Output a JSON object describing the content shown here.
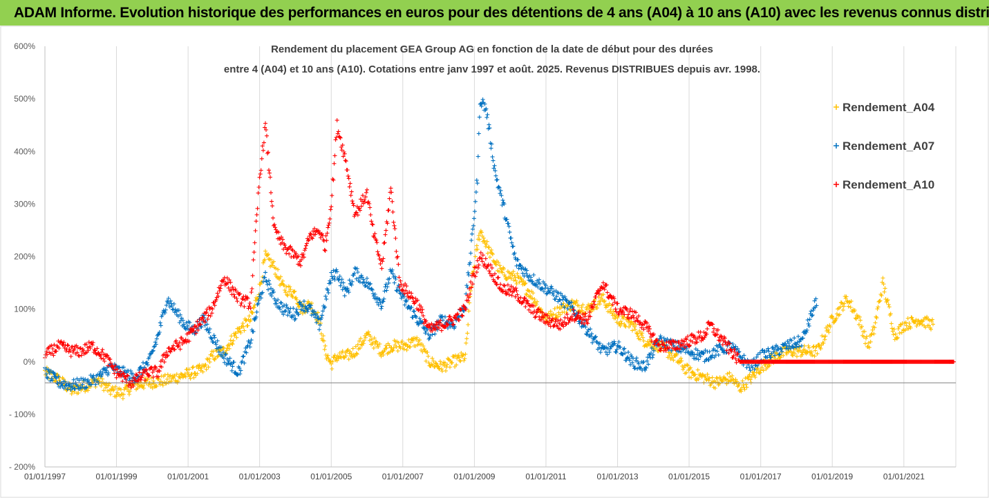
{
  "header": {
    "banner_title": "ADAM Informe. Evolution historique des performances en euros pour des détentions de 4 ans (A04) à 10 ans (A10) avec les revenus connus distribués",
    "banner_color": "#92d050"
  },
  "chart_data": {
    "type": "scatter",
    "title_line1": "Rendement du placement GEA Group AG en fonction de la date de début pour des durées",
    "title_line2": "entre 4 (A04) et 10 ans (A10). Cotations entre janv 1997 et août. 2025. Revenus DISTRIBUES depuis avr. 1998.",
    "xlabel": "",
    "ylabel": "",
    "x_type": "date",
    "xlim": [
      "1997-01-01",
      "2022-06-15"
    ],
    "ylim": [
      -200,
      600
    ],
    "y_ticks": [
      600,
      500,
      400,
      300,
      200,
      100,
      0,
      -100,
      -200
    ],
    "y_tick_labels": [
      "600%",
      "500%",
      "400%",
      "300%",
      "200%",
      "100%",
      "0%",
      "- 100%",
      "- 200%"
    ],
    "x_ticks": [
      "1997-01-01",
      "1999-01-01",
      "2001-01-01",
      "2003-01-01",
      "2005-01-01",
      "2007-01-01",
      "2009-01-01",
      "2011-01-01",
      "2013-01-01",
      "2015-01-01",
      "2017-01-01",
      "2019-01-01",
      "2021-01-01"
    ],
    "x_tick_labels": [
      "01/01/1997",
      "01/01/1999",
      "01/01/2001",
      "01/01/2003",
      "01/01/2005",
      "01/01/2007",
      "01/01/2009",
      "01/01/2011",
      "01/01/2013",
      "01/01/2015",
      "01/01/2017",
      "01/01/2019",
      "01/01/2021"
    ],
    "grid": "vertical",
    "legend_position": "top-right",
    "marker": "+",
    "series": [
      {
        "name": "Rendement_A04",
        "color": "#ffc000",
        "x": [
          "1997-01-01",
          "1997-06-01",
          "1997-10-01",
          "1998-03-01",
          "1998-07-01",
          "1998-11-01",
          "1999-03-01",
          "1999-07-01",
          "1999-12-01",
          "2000-06-01",
          "2000-12-01",
          "2001-03-01",
          "2001-06-01",
          "2001-09-01",
          "2002-01-01",
          "2002-06-01",
          "2002-10-01",
          "2003-01-01",
          "2003-03-01",
          "2003-06-01",
          "2003-09-01",
          "2004-01-01",
          "2004-03-01",
          "2004-06-01",
          "2004-09-01",
          "2004-11-01",
          "2005-01-01",
          "2005-03-01",
          "2005-06-01",
          "2005-09-01",
          "2006-01-01",
          "2006-06-01",
          "2006-09-01",
          "2007-01-01",
          "2007-06-01",
          "2007-10-01",
          "2008-02-01",
          "2008-06-01",
          "2008-10-01",
          "2008-12-01",
          "2009-03-01",
          "2009-06-01",
          "2009-10-01",
          "2010-03-01",
          "2010-08-01",
          "2011-01-01",
          "2011-06-01",
          "2011-10-01",
          "2012-03-01",
          "2012-08-01",
          "2013-01-01",
          "2013-06-01",
          "2013-10-01",
          "2014-03-01",
          "2014-08-01",
          "2015-01-01",
          "2015-06-01",
          "2015-10-01",
          "2016-03-01",
          "2016-06-01",
          "2016-10-01",
          "2017-01-01",
          "2017-06-01",
          "2017-10-01",
          "2018-03-01",
          "2018-08-01",
          "2019-01-01",
          "2019-06-01",
          "2019-10-01",
          "2020-01-01",
          "2020-03-01",
          "2020-06-01",
          "2020-10-01",
          "2021-01-01",
          "2021-06-01",
          "2021-11-01"
        ],
        "y": [
          -20,
          -35,
          -55,
          -45,
          -35,
          -55,
          -60,
          -45,
          -40,
          -35,
          -25,
          -20,
          -15,
          10,
          20,
          60,
          80,
          140,
          200,
          180,
          140,
          130,
          100,
          110,
          80,
          20,
          -5,
          10,
          10,
          20,
          50,
          20,
          30,
          30,
          40,
          0,
          -10,
          0,
          10,
          150,
          250,
          210,
          170,
          160,
          130,
          80,
          100,
          110,
          100,
          120,
          80,
          70,
          40,
          30,
          10,
          -20,
          -30,
          -40,
          -30,
          -50,
          -30,
          -10,
          10,
          20,
          20,
          20,
          80,
          120,
          80,
          30,
          60,
          150,
          50,
          70,
          80,
          70
        ]
      },
      {
        "name": "Rendement_A07",
        "color": "#0070c0",
        "x": [
          "1997-01-01",
          "1997-06-01",
          "1997-10-01",
          "1998-03-01",
          "1998-07-01",
          "1998-11-01",
          "1999-03-01",
          "1999-07-01",
          "1999-12-01",
          "2000-03-01",
          "2000-06-01",
          "2000-12-01",
          "2001-03-01",
          "2001-06-01",
          "2001-09-01",
          "2002-01-01",
          "2002-06-01",
          "2002-10-01",
          "2003-01-01",
          "2003-03-01",
          "2003-06-01",
          "2003-09-01",
          "2004-01-01",
          "2004-03-01",
          "2004-06-01",
          "2004-09-01",
          "2005-01-01",
          "2005-03-01",
          "2005-06-01",
          "2005-09-01",
          "2006-01-01",
          "2006-06-01",
          "2006-09-01",
          "2007-01-01",
          "2007-06-01",
          "2007-10-01",
          "2008-02-01",
          "2008-06-01",
          "2008-10-01",
          "2008-12-01",
          "2009-02-01",
          "2009-03-01",
          "2009-05-01",
          "2009-08-01",
          "2009-11-01",
          "2010-03-01",
          "2010-08-01",
          "2011-01-01",
          "2011-06-01",
          "2011-10-01",
          "2012-03-01",
          "2012-08-01",
          "2013-01-01",
          "2013-06-01",
          "2013-10-01",
          "2014-03-01",
          "2014-08-01",
          "2015-01-01",
          "2015-06-01",
          "2015-10-01",
          "2016-03-01",
          "2016-06-01",
          "2016-10-01",
          "2017-01-01",
          "2017-06-01",
          "2017-10-01",
          "2018-03-01",
          "2018-08-01"
        ],
        "y": [
          -20,
          -40,
          -45,
          -40,
          -30,
          -10,
          -20,
          -30,
          0,
          50,
          120,
          70,
          60,
          80,
          50,
          10,
          -20,
          40,
          120,
          160,
          120,
          100,
          90,
          110,
          100,
          70,
          160,
          170,
          130,
          170,
          150,
          110,
          170,
          120,
          80,
          50,
          80,
          70,
          110,
          220,
          350,
          500,
          480,
          360,
          290,
          190,
          160,
          140,
          120,
          100,
          60,
          20,
          30,
          0,
          -10,
          40,
          30,
          20,
          10,
          20,
          30,
          10,
          -10,
          10,
          20,
          30,
          40,
          120
        ]
      },
      {
        "name": "Rendement_A10",
        "color": "#ff0000",
        "x": [
          "1997-01-01",
          "1997-03-01",
          "1997-06-01",
          "1997-10-01",
          "1998-01-01",
          "1998-05-01",
          "1998-09-01",
          "1999-01-01",
          "1999-06-01",
          "1999-12-01",
          "2000-03-01",
          "2000-06-01",
          "2000-09-01",
          "2000-12-01",
          "2001-03-01",
          "2001-06-01",
          "2001-09-01",
          "2002-01-01",
          "2002-06-01",
          "2002-10-01",
          "2003-01-01",
          "2003-03-01",
          "2003-06-01",
          "2003-09-01",
          "2004-01-01",
          "2004-03-01",
          "2004-06-01",
          "2004-09-01",
          "2004-11-01",
          "2005-01-01",
          "2005-03-01",
          "2005-06-01",
          "2005-09-01",
          "2006-01-01",
          "2006-03-01",
          "2006-06-01",
          "2006-09-01",
          "2006-12-01",
          "2007-03-01",
          "2007-06-01",
          "2007-10-01",
          "2008-02-01",
          "2008-06-01",
          "2008-10-01",
          "2008-12-01",
          "2009-03-01",
          "2009-06-01",
          "2009-10-01",
          "2010-03-01",
          "2010-08-01",
          "2011-01-01",
          "2011-06-01",
          "2011-10-01",
          "2012-03-01",
          "2012-08-01",
          "2013-01-01",
          "2013-06-01",
          "2013-10-01",
          "2014-03-01",
          "2014-08-01",
          "2015-01-01",
          "2015-06-01",
          "2015-08-01",
          "2016-06-01",
          "2017-06-01",
          "2018-06-01",
          "2019-06-01",
          "2020-06-01",
          "2021-06-01",
          "2022-06-01"
        ],
        "y": [
          10,
          20,
          30,
          20,
          20,
          30,
          10,
          -20,
          -40,
          -20,
          -20,
          20,
          30,
          40,
          60,
          80,
          100,
          160,
          120,
          110,
          350,
          450,
          250,
          220,
          200,
          190,
          240,
          250,
          220,
          300,
          450,
          380,
          280,
          320,
          250,
          180,
          330,
          150,
          130,
          110,
          60,
          70,
          80,
          100,
          150,
          200,
          180,
          140,
          130,
          100,
          80,
          70,
          90,
          80,
          150,
          100,
          90,
          70,
          30,
          30,
          40,
          50,
          70,
          0,
          0,
          0,
          0,
          0,
          0,
          0
        ]
      }
    ]
  }
}
